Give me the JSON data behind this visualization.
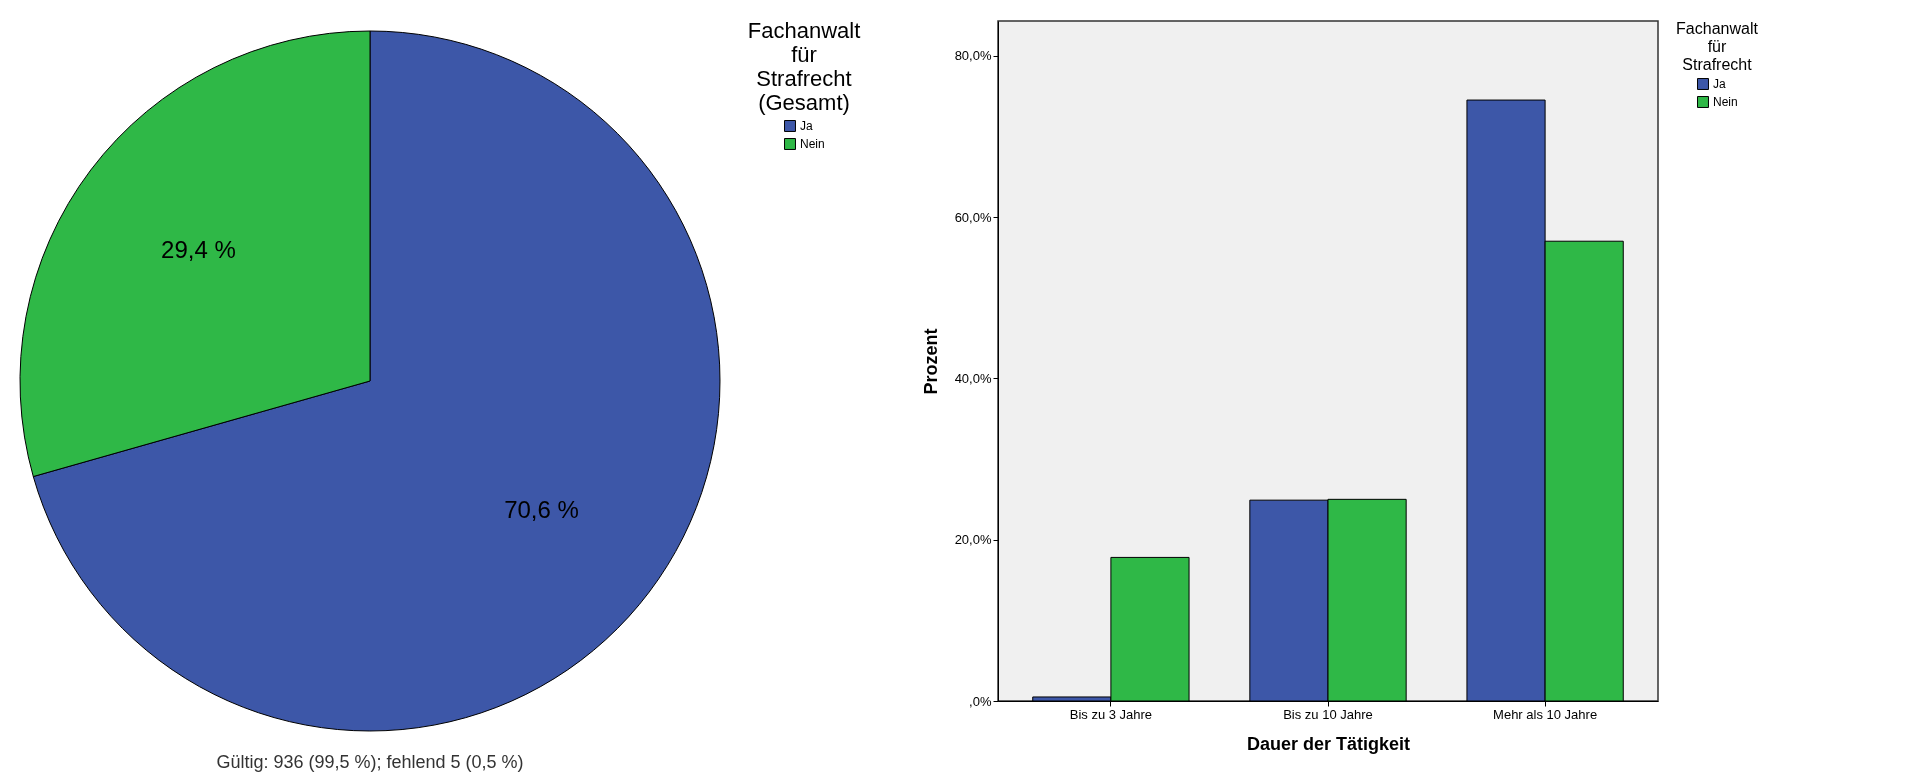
{
  "chart_data": [
    {
      "type": "pie",
      "legend_title": "Fachanwalt für Strafrecht (Gesamt)",
      "categories": [
        "Ja",
        "Nein"
      ],
      "values": [
        70.6,
        29.4
      ],
      "colors": [
        "#3d57a8",
        "#2fb847"
      ],
      "value_labels": [
        "70,6 %",
        "29,4 %"
      ],
      "legend": "right",
      "annotations": [
        "Gültig: 936 (99,5 %); fehlend 5 (0,5 %)"
      ]
    },
    {
      "type": "bar",
      "legend_title": "Fachanwalt für Strafrecht",
      "xlabel": "Dauer der Tätigkeit",
      "ylabel": "Prozent",
      "categories": [
        "Bis zu 3 Jahre",
        "Bis zu 10 Jahre",
        "Mehr als 10 Jahre"
      ],
      "series": [
        {
          "name": "Ja",
          "color": "#3d57a8",
          "values": [
            0.5,
            24.9,
            74.5
          ]
        },
        {
          "name": "Nein",
          "color": "#2fb847",
          "values": [
            17.8,
            25.0,
            57.0
          ]
        }
      ],
      "ylim": [
        0,
        84.3
      ],
      "yticks": [
        {
          "value": 0,
          "label": ",0%"
        },
        {
          "value": 20,
          "label": "20,0%"
        },
        {
          "value": 40,
          "label": "40,0%"
        },
        {
          "value": 60,
          "label": "60,0%"
        },
        {
          "value": 80,
          "label": "80,0%"
        }
      ],
      "grid": false,
      "legend": "right"
    }
  ]
}
